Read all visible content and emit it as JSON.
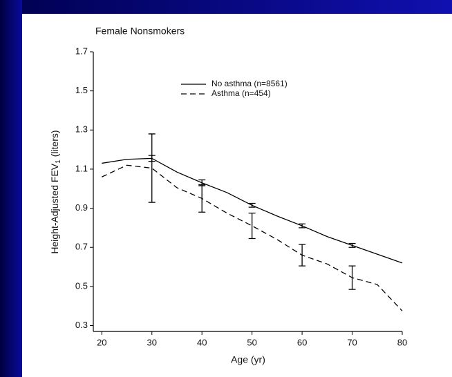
{
  "chart_data": {
    "type": "line",
    "title": "Female Nonsmokers",
    "xlabel": "Age (yr)",
    "ylabel": [
      "Height-Adjusted FEV",
      "1",
      "(liters)"
    ],
    "x": [
      20,
      25,
      30,
      35,
      40,
      45,
      50,
      55,
      60,
      65,
      70,
      75,
      80
    ],
    "series": [
      {
        "name": "No asthma (n=8561)",
        "color": "#000000",
        "dash": false,
        "values": [
          1.13,
          1.15,
          1.155,
          1.085,
          1.03,
          0.98,
          0.915,
          0.86,
          0.81,
          0.755,
          0.71,
          0.665,
          0.62
        ],
        "errors": [
          null,
          null,
          0.015,
          null,
          0.015,
          null,
          0.01,
          null,
          0.01,
          null,
          0.01,
          null,
          null
        ]
      },
      {
        "name": "Asthma (n=454)",
        "color": "#000000",
        "dash": true,
        "values": [
          1.06,
          1.12,
          1.105,
          1.005,
          0.95,
          0.875,
          0.81,
          0.74,
          0.66,
          0.615,
          0.545,
          0.51,
          0.375
        ],
        "errors": [
          null,
          null,
          0.175,
          null,
          0.07,
          null,
          0.065,
          null,
          0.055,
          null,
          0.06,
          null,
          null
        ]
      }
    ],
    "xlim": [
      18.3,
      80
    ],
    "xticks": [
      20,
      30,
      40,
      50,
      60,
      70,
      80
    ],
    "ylim": [
      0.27,
      1.7
    ],
    "yticks": [
      0.3,
      0.5,
      0.7,
      0.9,
      1.1,
      1.3,
      1.5,
      1.7
    ],
    "legend": "upper-right",
    "grid": false
  }
}
